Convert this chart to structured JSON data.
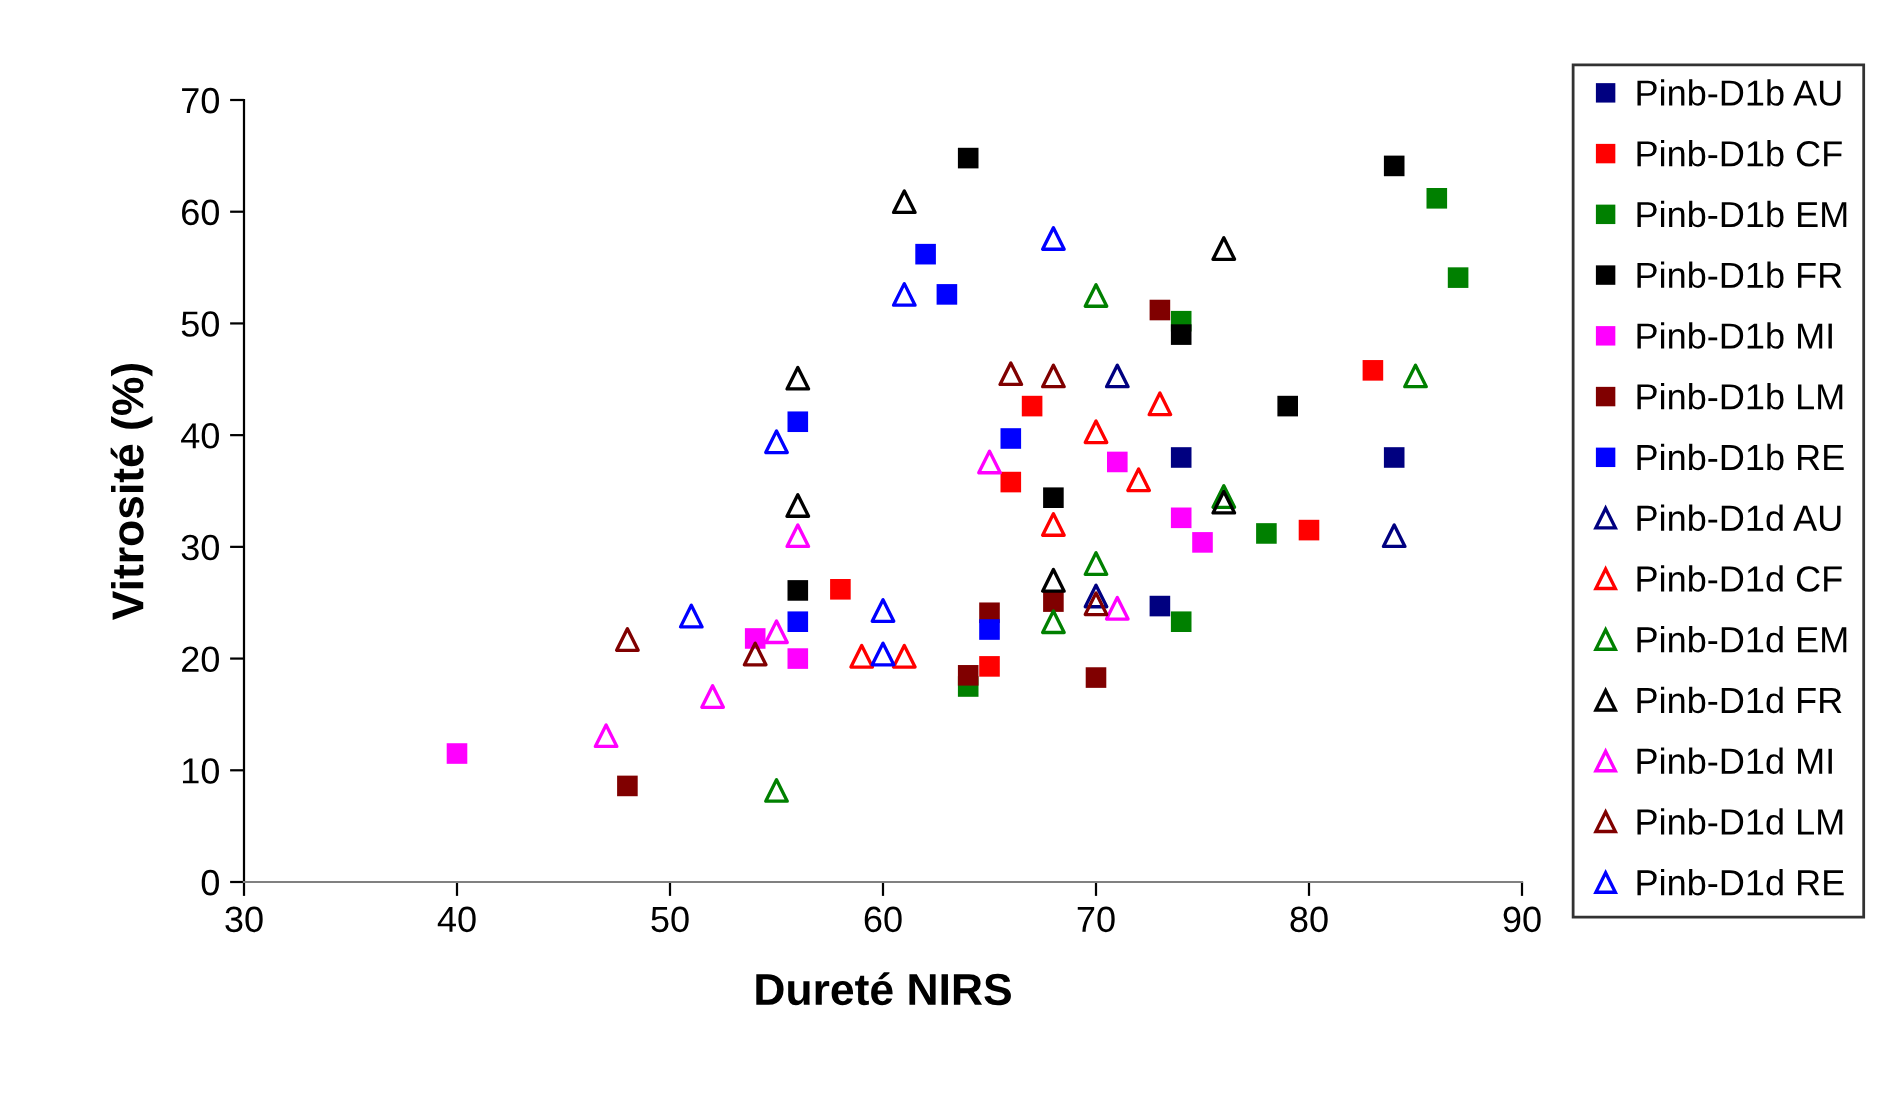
{
  "chart_data": {
    "type": "scatter",
    "xlabel": "Dureté NIRS",
    "ylabel": "Vitrosité (%)",
    "xlim": [
      30,
      90
    ],
    "xticks": [
      30,
      40,
      50,
      60,
      70,
      80,
      90
    ],
    "ylim": [
      0,
      70
    ],
    "yticks": [
      0,
      10,
      20,
      30,
      40,
      50,
      60,
      70
    ],
    "grid": false,
    "legend": "right",
    "series": [
      {
        "name": "Pinb-D1b AU",
        "color": "#000080",
        "marker": "square",
        "x": [
          74,
          84,
          73
        ],
        "values": [
          38,
          38,
          24.7
        ]
      },
      {
        "name": "Pinb-D1b CF",
        "color": "#ff0000",
        "marker": "square",
        "x": [
          58,
          65,
          66,
          67,
          83,
          80
        ],
        "values": [
          26.2,
          19.3,
          35.8,
          42.6,
          45.8,
          31.5
        ]
      },
      {
        "name": "Pinb-D1b EM",
        "color": "#008000",
        "marker": "square",
        "x": [
          86,
          87,
          74,
          78,
          74,
          64
        ],
        "values": [
          61.2,
          54.1,
          50.2,
          31.2,
          23.3,
          17.5
        ]
      },
      {
        "name": "Pinb-D1b FR",
        "color": "#000000",
        "marker": "square",
        "x": [
          64,
          84,
          74,
          79,
          68,
          56
        ],
        "values": [
          64.8,
          64.1,
          49,
          42.6,
          34.4,
          26.1
        ]
      },
      {
        "name": "Pinb-D1b MI",
        "color": "#ff00ff",
        "marker": "square",
        "x": [
          40,
          54,
          56,
          71,
          74,
          75
        ],
        "values": [
          11.5,
          21.8,
          20,
          37.6,
          32.6,
          30.4
        ]
      },
      {
        "name": "Pinb-D1b LM",
        "color": "#800000",
        "marker": "square",
        "x": [
          48,
          73,
          65,
          68,
          70,
          64
        ],
        "values": [
          8.6,
          51.2,
          24.1,
          25.1,
          18.3,
          18.5
        ]
      },
      {
        "name": "Pinb-D1b RE",
        "color": "#0000ff",
        "marker": "square",
        "x": [
          56,
          56,
          62,
          63,
          66,
          65
        ],
        "values": [
          41.2,
          23.3,
          56.2,
          52.6,
          39.7,
          22.6
        ]
      },
      {
        "name": "Pinb-D1d AU",
        "color": "#000080",
        "marker": "triangle",
        "x": [
          71,
          84,
          70
        ],
        "values": [
          45.3,
          31,
          25.6
        ]
      },
      {
        "name": "Pinb-D1d CF",
        "color": "#ff0000",
        "marker": "triangle",
        "x": [
          73,
          70,
          72,
          68,
          61,
          59
        ],
        "values": [
          42.8,
          40.3,
          36,
          32,
          20.2,
          20.2
        ]
      },
      {
        "name": "Pinb-D1d EM",
        "color": "#008000",
        "marker": "triangle",
        "x": [
          70,
          85,
          76,
          70,
          68,
          55
        ],
        "values": [
          52.5,
          45.3,
          34.5,
          28.5,
          23.3,
          8.2
        ]
      },
      {
        "name": "Pinb-D1d FR",
        "color": "#000000",
        "marker": "triangle",
        "x": [
          61,
          76,
          56,
          56,
          76,
          68
        ],
        "values": [
          60.9,
          56.7,
          45.1,
          33.7,
          34,
          27
        ]
      },
      {
        "name": "Pinb-D1d MI",
        "color": "#ff00ff",
        "marker": "triangle",
        "x": [
          65,
          56,
          55,
          52,
          47,
          71
        ],
        "values": [
          37.6,
          31,
          22.4,
          16.6,
          13.1,
          24.5
        ]
      },
      {
        "name": "Pinb-D1d LM",
        "color": "#800000",
        "marker": "triangle",
        "x": [
          48,
          54,
          66,
          68,
          70
        ],
        "values": [
          21.7,
          20.4,
          45.5,
          45.3,
          24.9
        ]
      },
      {
        "name": "Pinb-D1d RE",
        "color": "#0000ff",
        "marker": "triangle",
        "x": [
          68,
          61,
          55,
          51,
          60,
          60
        ],
        "values": [
          57.6,
          52.6,
          39.4,
          23.8,
          24.3,
          20.4
        ]
      }
    ]
  }
}
